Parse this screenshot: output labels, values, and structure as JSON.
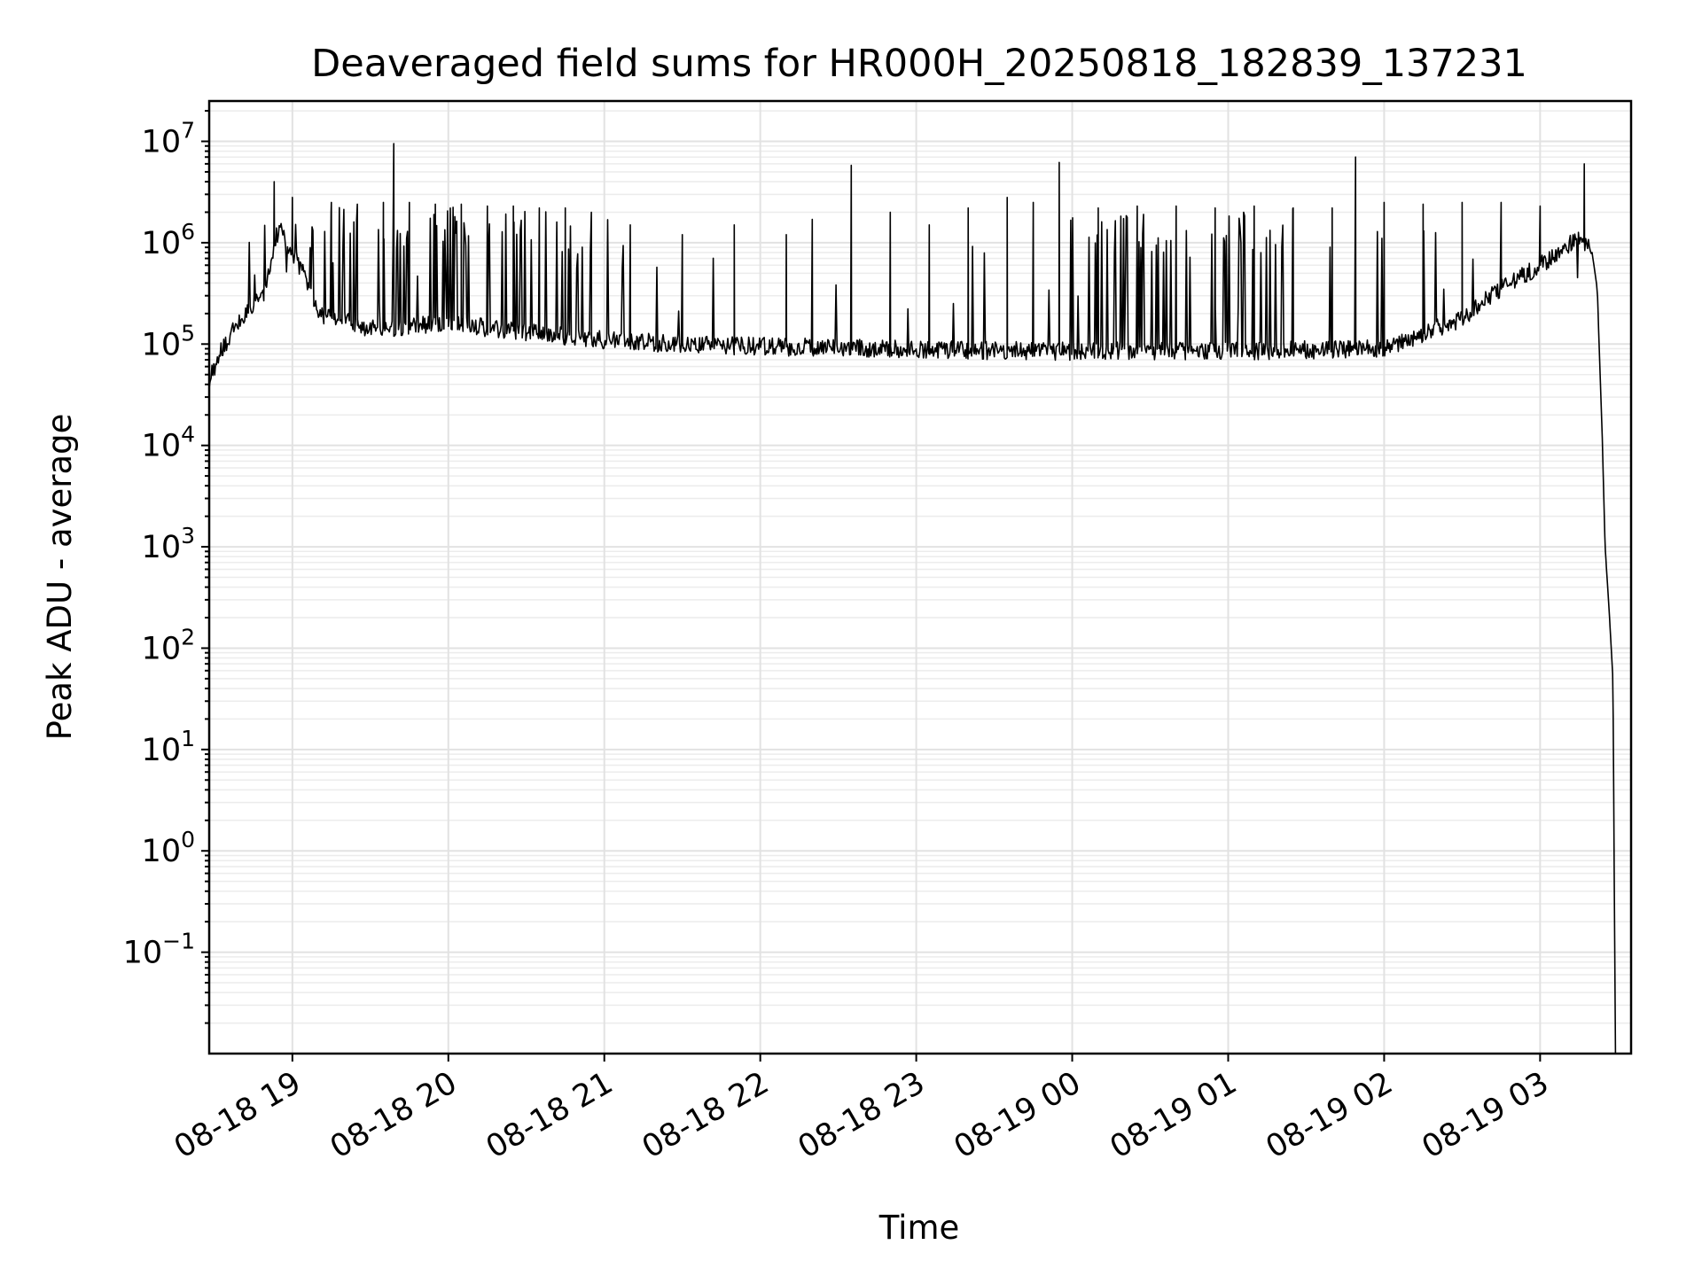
{
  "chart_data": {
    "type": "line",
    "title": "Deaveraged field sums for HR000H_20250818_182839_137231",
    "xlabel": "Time",
    "ylabel": "Peak ADU - average",
    "yscale": "log",
    "xlim": [
      "2025-08-18 18:28",
      "2025-08-19 03:35"
    ],
    "ylim": [
      0.01,
      25000000
    ],
    "grid": true,
    "x_ticks": [
      {
        "value": "2025-08-18 19:00",
        "label": "08-18 19"
      },
      {
        "value": "2025-08-18 20:00",
        "label": "08-18 20"
      },
      {
        "value": "2025-08-18 21:00",
        "label": "08-18 21"
      },
      {
        "value": "2025-08-18 22:00",
        "label": "08-18 22"
      },
      {
        "value": "2025-08-18 23:00",
        "label": "08-18 23"
      },
      {
        "value": "2025-08-19 00:00",
        "label": "08-19 00"
      },
      {
        "value": "2025-08-19 01:00",
        "label": "08-19 01"
      },
      {
        "value": "2025-08-19 02:00",
        "label": "08-19 02"
      },
      {
        "value": "2025-08-19 03:00",
        "label": "08-19 03"
      }
    ],
    "y_ticks": [
      {
        "value": 0.1,
        "base": "10",
        "exp": "−1"
      },
      {
        "value": 1,
        "base": "10",
        "exp": "0"
      },
      {
        "value": 10,
        "base": "10",
        "exp": "1"
      },
      {
        "value": 100,
        "base": "10",
        "exp": "2"
      },
      {
        "value": 1000,
        "base": "10",
        "exp": "3"
      },
      {
        "value": 10000,
        "base": "10",
        "exp": "4"
      },
      {
        "value": 100000,
        "base": "10",
        "exp": "5"
      },
      {
        "value": 1000000,
        "base": "10",
        "exp": "6"
      },
      {
        "value": 10000000,
        "base": "10",
        "exp": "7"
      }
    ],
    "series": [
      {
        "color": "#000000",
        "baseline": [
          [
            "2025-08-18 18:28",
            45000
          ],
          [
            "2025-08-18 18:32",
            80000
          ],
          [
            "2025-08-18 18:38",
            150000
          ],
          [
            "2025-08-18 18:45",
            250000
          ],
          [
            "2025-08-18 18:50",
            350000
          ],
          [
            "2025-08-18 18:53",
            1000000
          ],
          [
            "2025-08-18 18:55",
            1350000
          ],
          [
            "2025-08-18 19:00",
            800000
          ],
          [
            "2025-08-18 19:05",
            450000
          ],
          [
            "2025-08-18 19:10",
            200000
          ],
          [
            "2025-08-18 19:30",
            140000
          ],
          [
            "2025-08-18 20:00",
            160000
          ],
          [
            "2025-08-18 20:30",
            130000
          ],
          [
            "2025-08-18 21:00",
            110000
          ],
          [
            "2025-08-18 21:30",
            100000
          ],
          [
            "2025-08-18 22:00",
            95000
          ],
          [
            "2025-08-18 23:00",
            88000
          ],
          [
            "2025-08-19 00:00",
            85000
          ],
          [
            "2025-08-19 01:00",
            85000
          ],
          [
            "2025-08-19 02:00",
            90000
          ],
          [
            "2025-08-19 02:30",
            180000
          ],
          [
            "2025-08-19 02:45",
            350000
          ],
          [
            "2025-08-19 03:00",
            600000
          ],
          [
            "2025-08-19 03:15",
            1100000
          ],
          [
            "2025-08-19 03:20",
            800000
          ],
          [
            "2025-08-19 03:22",
            350000
          ],
          [
            "2025-08-19 03:24",
            10000
          ],
          [
            "2025-08-19 03:25",
            1000
          ],
          [
            "2025-08-19 03:26",
            400
          ],
          [
            "2025-08-19 03:27",
            150
          ],
          [
            "2025-08-19 03:28",
            50
          ],
          [
            "2025-08-19 03:29",
            0.01
          ]
        ],
        "spikes": [
          [
            "2025-08-18 18:53",
            4000000
          ],
          [
            "2025-08-18 19:00",
            2800000
          ],
          [
            "2025-08-18 19:15",
            2500000
          ],
          [
            "2025-08-18 19:25",
            2400000
          ],
          [
            "2025-08-18 19:35",
            2500000
          ],
          [
            "2025-08-18 19:39",
            9500000
          ],
          [
            "2025-08-18 19:45",
            2500000
          ],
          [
            "2025-08-18 19:55",
            2400000
          ],
          [
            "2025-08-18 20:05",
            2400000
          ],
          [
            "2025-08-18 20:15",
            2300000
          ],
          [
            "2025-08-18 20:25",
            2300000
          ],
          [
            "2025-08-18 20:35",
            2200000
          ],
          [
            "2025-08-18 20:45",
            2200000
          ],
          [
            "2025-08-18 20:55",
            2000000
          ],
          [
            "2025-08-18 21:10",
            1500000
          ],
          [
            "2025-08-18 21:30",
            1200000
          ],
          [
            "2025-08-18 21:50",
            1500000
          ],
          [
            "2025-08-18 22:10",
            1200000
          ],
          [
            "2025-08-18 22:20",
            1700000
          ],
          [
            "2025-08-18 22:35",
            5800000
          ],
          [
            "2025-08-18 22:50",
            2000000
          ],
          [
            "2025-08-18 23:05",
            1500000
          ],
          [
            "2025-08-18 23:20",
            2200000
          ],
          [
            "2025-08-18 23:35",
            2800000
          ],
          [
            "2025-08-18 23:45",
            2500000
          ],
          [
            "2025-08-18 23:55",
            6200000
          ],
          [
            "2025-08-19 00:10",
            2200000
          ],
          [
            "2025-08-19 00:25",
            2300000
          ],
          [
            "2025-08-19 00:40",
            2300000
          ],
          [
            "2025-08-19 00:55",
            2200000
          ],
          [
            "2025-08-19 01:10",
            2300000
          ],
          [
            "2025-08-19 01:25",
            2200000
          ],
          [
            "2025-08-19 01:40",
            2200000
          ],
          [
            "2025-08-19 01:49",
            7000000
          ],
          [
            "2025-08-19 02:00",
            2500000
          ],
          [
            "2025-08-19 02:15",
            2400000
          ],
          [
            "2025-08-19 02:30",
            2500000
          ],
          [
            "2025-08-19 02:45",
            2500000
          ],
          [
            "2025-08-19 03:00",
            2300000
          ],
          [
            "2025-08-19 03:17",
            6000000
          ]
        ]
      }
    ]
  }
}
